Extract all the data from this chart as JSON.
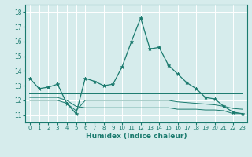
{
  "xlabel": "Humidex (Indice chaleur)",
  "bg_color": "#d6ecec",
  "grid_color": "#b8d8d8",
  "line_color": "#1a7a6e",
  "xlim": [
    -0.5,
    23.5
  ],
  "ylim": [
    10.5,
    18.5
  ],
  "yticks": [
    11,
    12,
    13,
    14,
    15,
    16,
    17,
    18
  ],
  "xticks": [
    0,
    1,
    2,
    3,
    4,
    5,
    6,
    7,
    8,
    9,
    10,
    11,
    12,
    13,
    14,
    15,
    16,
    17,
    18,
    19,
    20,
    21,
    22,
    23
  ],
  "line1_x": [
    0,
    1,
    2,
    3,
    4,
    5,
    6,
    7,
    8,
    9,
    10,
    11,
    12,
    13,
    14,
    15,
    16,
    17,
    18,
    19,
    20,
    21,
    22,
    23
  ],
  "line1_y": [
    13.5,
    12.8,
    12.9,
    13.1,
    11.8,
    11.1,
    13.5,
    13.3,
    13.0,
    13.1,
    14.3,
    16.0,
    17.6,
    15.5,
    15.6,
    14.4,
    13.8,
    13.2,
    12.8,
    12.2,
    12.1,
    11.6,
    11.2,
    11.1
  ],
  "line2_x": [
    0,
    1,
    2,
    3,
    4,
    5,
    6,
    7,
    8,
    9,
    10,
    11,
    12,
    13,
    14,
    15,
    16,
    17,
    18,
    19,
    20,
    21,
    22,
    23
  ],
  "line2_y": [
    12.45,
    12.45,
    12.45,
    12.45,
    12.45,
    12.45,
    12.45,
    12.45,
    12.45,
    12.45,
    12.45,
    12.45,
    12.45,
    12.45,
    12.45,
    12.45,
    12.45,
    12.45,
    12.45,
    12.45,
    12.45,
    12.45,
    12.45,
    12.45
  ],
  "line3_x": [
    0,
    1,
    2,
    3,
    4,
    5,
    6,
    7,
    8,
    9,
    10,
    11,
    12,
    13,
    14,
    15,
    16,
    17,
    18,
    19,
    20,
    21,
    22,
    23
  ],
  "line3_y": [
    12.2,
    12.2,
    12.2,
    12.2,
    12.0,
    11.6,
    11.5,
    11.5,
    11.5,
    11.5,
    11.5,
    11.5,
    11.5,
    11.5,
    11.5,
    11.5,
    11.4,
    11.4,
    11.4,
    11.35,
    11.35,
    11.3,
    11.1,
    11.1
  ],
  "line4_x": [
    0,
    1,
    2,
    3,
    4,
    5,
    6,
    7,
    8,
    9,
    10,
    11,
    12,
    13,
    14,
    15,
    16,
    17,
    18,
    19,
    20,
    21,
    22,
    23
  ],
  "line4_y": [
    12.0,
    12.0,
    12.0,
    12.0,
    11.8,
    11.3,
    12.0,
    12.0,
    12.0,
    12.0,
    12.0,
    12.0,
    12.0,
    12.0,
    12.0,
    12.0,
    11.9,
    11.85,
    11.8,
    11.75,
    11.7,
    11.6,
    11.45,
    11.4
  ]
}
